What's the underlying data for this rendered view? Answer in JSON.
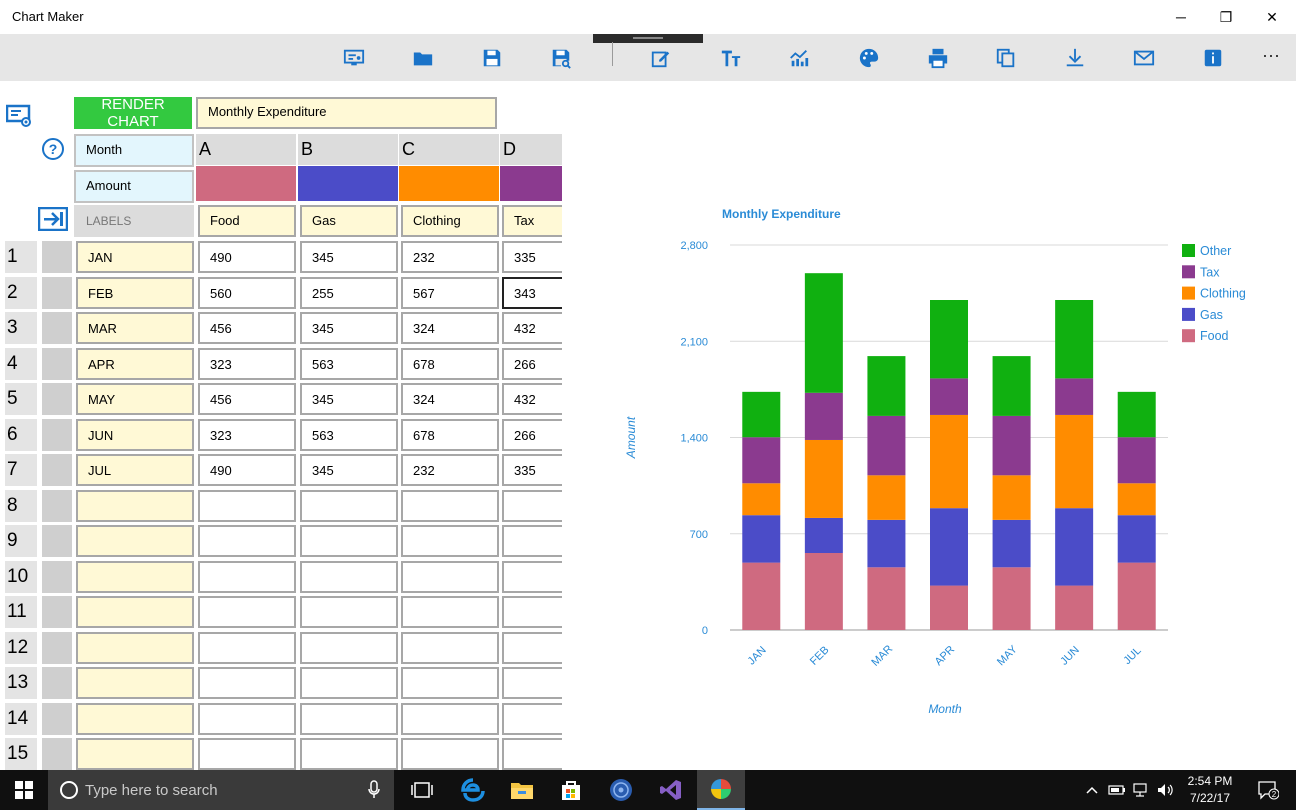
{
  "window": {
    "title": "Chart Maker",
    "minimize": "─",
    "maximize": "❐",
    "close": "✕"
  },
  "toolbar": {
    "buttons": [
      "presentation-icon",
      "open-folder-icon",
      "save-icon",
      "save-as-icon",
      "edit-icon",
      "text-format-icon",
      "chart-type-icon",
      "palette-icon",
      "print-icon",
      "copy-icon",
      "download-icon",
      "mail-icon",
      "info-icon"
    ],
    "more": "···",
    "accent": "#1a73c8"
  },
  "editor": {
    "render_button": "RENDER CHART",
    "chart_title_value": "Monthly Expenditure",
    "x_label_value": "Month",
    "y_label_value": "Amount",
    "labels_header": "LABELS",
    "help_icon": "?",
    "columns": [
      {
        "letter": "A",
        "color": "#cf6a80",
        "series": "Food"
      },
      {
        "letter": "B",
        "color": "#4b4cc8",
        "series": "Gas"
      },
      {
        "letter": "C",
        "color": "#ff8c00",
        "series": "Clothing"
      },
      {
        "letter": "D",
        "color": "#8b3a8f",
        "series": "Tax"
      }
    ],
    "rows": [
      {
        "num": "1",
        "label": "JAN",
        "values": [
          "490",
          "345",
          "232",
          "335"
        ]
      },
      {
        "num": "2",
        "label": "FEB",
        "values": [
          "560",
          "255",
          "567",
          "343"
        ]
      },
      {
        "num": "3",
        "label": "MAR",
        "values": [
          "456",
          "345",
          "324",
          "432"
        ]
      },
      {
        "num": "4",
        "label": "APR",
        "values": [
          "323",
          "563",
          "678",
          "266"
        ]
      },
      {
        "num": "5",
        "label": "MAY",
        "values": [
          "456",
          "345",
          "324",
          "432"
        ]
      },
      {
        "num": "6",
        "label": "JUN",
        "values": [
          "323",
          "563",
          "678",
          "266"
        ]
      },
      {
        "num": "7",
        "label": "JUL",
        "values": [
          "490",
          "345",
          "232",
          "335"
        ]
      },
      {
        "num": "8",
        "label": "",
        "values": [
          "",
          "",
          "",
          ""
        ]
      },
      {
        "num": "9",
        "label": "",
        "values": [
          "",
          "",
          "",
          ""
        ]
      },
      {
        "num": "10",
        "label": "",
        "values": [
          "",
          "",
          "",
          ""
        ]
      },
      {
        "num": "11",
        "label": "",
        "values": [
          "",
          "",
          "",
          ""
        ]
      },
      {
        "num": "12",
        "label": "",
        "values": [
          "",
          "",
          "",
          ""
        ]
      },
      {
        "num": "13",
        "label": "",
        "values": [
          "",
          "",
          "",
          ""
        ]
      },
      {
        "num": "14",
        "label": "",
        "values": [
          "",
          "",
          "",
          ""
        ]
      },
      {
        "num": "15",
        "label": "",
        "values": [
          "",
          "",
          "",
          ""
        ]
      }
    ]
  },
  "chart_data": {
    "type": "bar",
    "stacked": true,
    "title": "Monthly Expenditure",
    "xlabel": "Month",
    "ylabel": "Amount",
    "categories": [
      "JAN",
      "FEB",
      "MAR",
      "APR",
      "MAY",
      "JUN",
      "JUL"
    ],
    "ylim": [
      0,
      2800
    ],
    "yticks": [
      0,
      700,
      1400,
      2100,
      2800
    ],
    "ytick_labels": [
      "0",
      "700",
      "1,400",
      "2,100",
      "2,800"
    ],
    "grid": true,
    "legend": "right",
    "series": [
      {
        "name": "Food",
        "color": "#cf6a80",
        "values": [
          490,
          560,
          456,
          323,
          456,
          323,
          490
        ]
      },
      {
        "name": "Gas",
        "color": "#4b4cc8",
        "values": [
          345,
          255,
          345,
          563,
          345,
          563,
          345
        ]
      },
      {
        "name": "Clothing",
        "color": "#ff8c00",
        "values": [
          232,
          567,
          324,
          678,
          324,
          678,
          232
        ]
      },
      {
        "name": "Tax",
        "color": "#8b3a8f",
        "values": [
          335,
          343,
          432,
          266,
          432,
          266,
          335
        ]
      },
      {
        "name": "Other",
        "color": "#10b010",
        "values": [
          330,
          870,
          435,
          570,
          435,
          570,
          330
        ]
      }
    ],
    "legend_order": [
      "Other",
      "Tax",
      "Clothing",
      "Gas",
      "Food"
    ],
    "text_color": "#2a8bd6"
  },
  "taskbar": {
    "search_placeholder": "Type here to search",
    "apps": [
      "task-view-icon",
      "edge-icon",
      "file-explorer-icon",
      "store-icon",
      "media-app-icon",
      "visual-studio-icon",
      "chart-maker-app-icon"
    ],
    "time": "2:54 PM",
    "date": "7/22/17",
    "notification_count": "2"
  }
}
